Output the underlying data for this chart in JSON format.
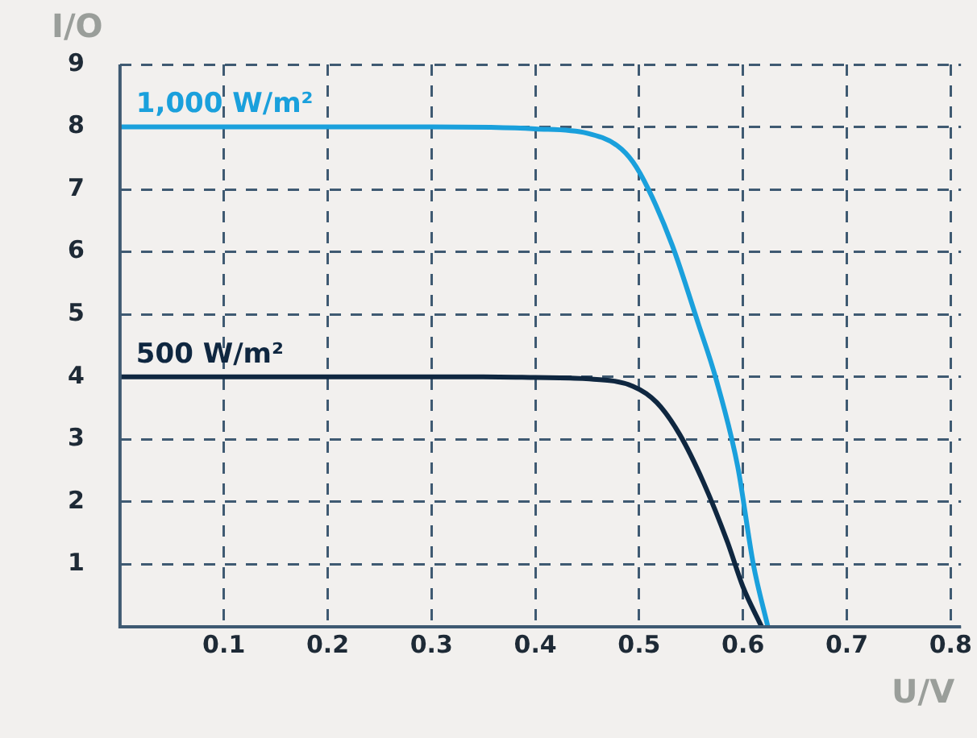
{
  "chart_data": {
    "type": "line",
    "xlabel": "U/V",
    "ylabel": "I/O",
    "xlim": [
      0,
      0.81
    ],
    "xticks": [
      {
        "value": 0,
        "label": null
      },
      0.1,
      0.2,
      0.3,
      0.4,
      0.5,
      0.6,
      0.7,
      0.8
    ],
    "ylim": [
      0,
      9
    ],
    "yticks": [
      {
        "value": 0,
        "label": null
      },
      1,
      2,
      3,
      4,
      5,
      6,
      7,
      8,
      9
    ],
    "grid": true,
    "legend": false,
    "marker": "none",
    "line_style": "solid",
    "series": [
      {
        "name": "1,000 W/m²",
        "color": "#1aa0dc",
        "x": [
          0,
          0.1,
          0.2,
          0.3,
          0.4,
          0.45,
          0.479,
          0.494,
          0.509,
          0.532,
          0.557,
          0.574,
          0.595,
          0.61,
          0.624
        ],
        "values": [
          8,
          8,
          8,
          8,
          7.97,
          7.9,
          7.7,
          7.44,
          7.0,
          6.1,
          4.85,
          3.97,
          2.56,
          1,
          0
        ]
      },
      {
        "name": "500 W/m²",
        "color": "#0f2740",
        "x": [
          0,
          0.1,
          0.2,
          0.3,
          0.35,
          0.4,
          0.449,
          0.494,
          0.517,
          0.539,
          0.562,
          0.585,
          0.6,
          0.618
        ],
        "values": [
          4,
          4,
          4,
          4,
          4,
          3.99,
          3.97,
          3.85,
          3.59,
          3.08,
          2.31,
          1.36,
          0.64,
          0
        ]
      }
    ]
  }
}
